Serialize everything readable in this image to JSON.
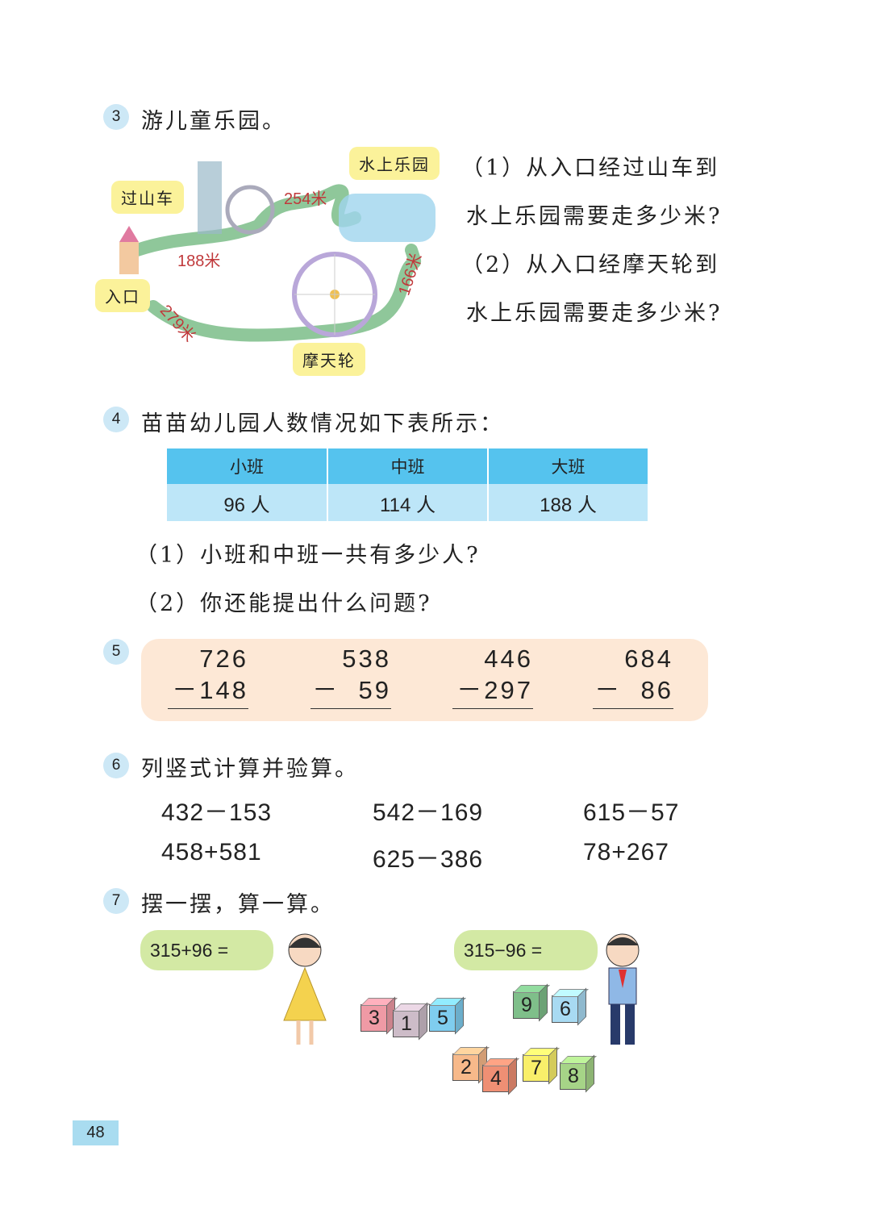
{
  "s3": {
    "num": "3",
    "title": "游儿童乐园。",
    "map": {
      "labels": {
        "coaster": "过山车",
        "water": "水上乐园",
        "entrance": "入口",
        "wheel": "摩天轮"
      },
      "distances": {
        "entrance_coaster": "188米",
        "coaster_water": "254米",
        "wheel_water": "166米",
        "entrance_wheel": "279米"
      }
    },
    "questions": [
      "（1）从入口经过山车到",
      "水上乐园需要走多少米?",
      "（2）从入口经摩天轮到",
      "水上乐园需要走多少米?"
    ]
  },
  "s4": {
    "num": "4",
    "title": "苗苗幼儿园人数情况如下表所示：",
    "table": {
      "headers": [
        "小班",
        "中班",
        "大班"
      ],
      "values": [
        "96 人",
        "114 人",
        "188 人"
      ]
    },
    "questions": [
      "（1）小班和中班一共有多少人?",
      "（2）你还能提出什么问题?"
    ]
  },
  "s5": {
    "num": "5",
    "problems": [
      {
        "top": "726",
        "bottom": "－148"
      },
      {
        "top": "538",
        "bottom": "－  59"
      },
      {
        "top": "446",
        "bottom": "－297"
      },
      {
        "top": "684",
        "bottom": "－  86"
      }
    ]
  },
  "s6": {
    "num": "6",
    "title": "列竖式计算并验算。",
    "exprs": [
      "432－153",
      "542－169",
      "615－57",
      "458+581",
      "625－386",
      "78+267"
    ]
  },
  "s7": {
    "num": "7",
    "title": "摆一摆，算一算。",
    "bubble_left": "315+96 =",
    "bubble_right": "315−96 =",
    "cubes": [
      {
        "n": "3",
        "color": "#ef9aa5"
      },
      {
        "n": "1",
        "color": "#cdbcc8"
      },
      {
        "n": "5",
        "color": "#7fcdef"
      },
      {
        "n": "9",
        "color": "#7fbf8a"
      },
      {
        "n": "6",
        "color": "#a8daf2"
      },
      {
        "n": "2",
        "color": "#f7b98a"
      },
      {
        "n": "4",
        "color": "#ef8f74"
      },
      {
        "n": "7",
        "color": "#f9ef6a"
      },
      {
        "n": "8",
        "color": "#a6d487"
      }
    ]
  },
  "page_number": "48"
}
